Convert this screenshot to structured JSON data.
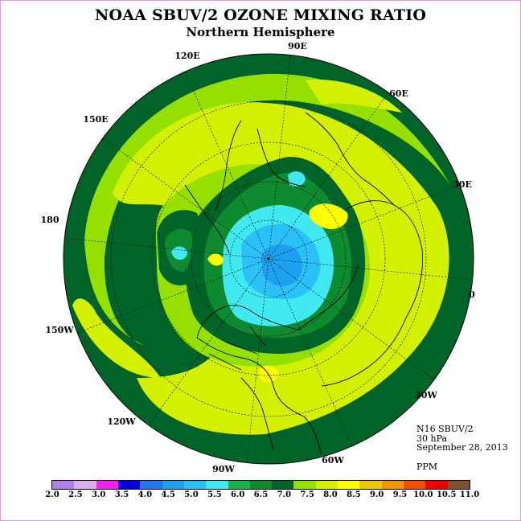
{
  "title": "NOAA SBUV/2 OZONE MIXING RATIO",
  "subtitle": "Northern Hemisphere",
  "info": {
    "satellite": "N16 SBUV/2",
    "level": "30 hPa",
    "date": "September 28, 2013",
    "units": "PPM"
  },
  "longitude_labels": [
    "90E",
    "60E",
    "30E",
    "0",
    "30W",
    "60W",
    "90W",
    "120W",
    "150W",
    "180",
    "150E",
    "120E"
  ],
  "colorbar": {
    "labels": [
      "2.0",
      "2.5",
      "3.0",
      "3.5",
      "4.0",
      "4.5",
      "5.0",
      "5.5",
      "6.0",
      "6.5",
      "7.0",
      "7.5",
      "8.0",
      "8.5",
      "9.0",
      "9.5",
      "10.0",
      "10.5",
      "11.0"
    ],
    "colors": [
      "#b080f0",
      "#d8b0f0",
      "#f020f0",
      "#0000e0",
      "#1e78f0",
      "#1ea0f0",
      "#2cc0f8",
      "#40e8f0",
      "#1ab048",
      "#0e8a30",
      "#006428",
      "#96e000",
      "#d2f000",
      "#ffff00",
      "#f0c800",
      "#f09600",
      "#f05000",
      "#f00000",
      "#805030"
    ]
  }
}
